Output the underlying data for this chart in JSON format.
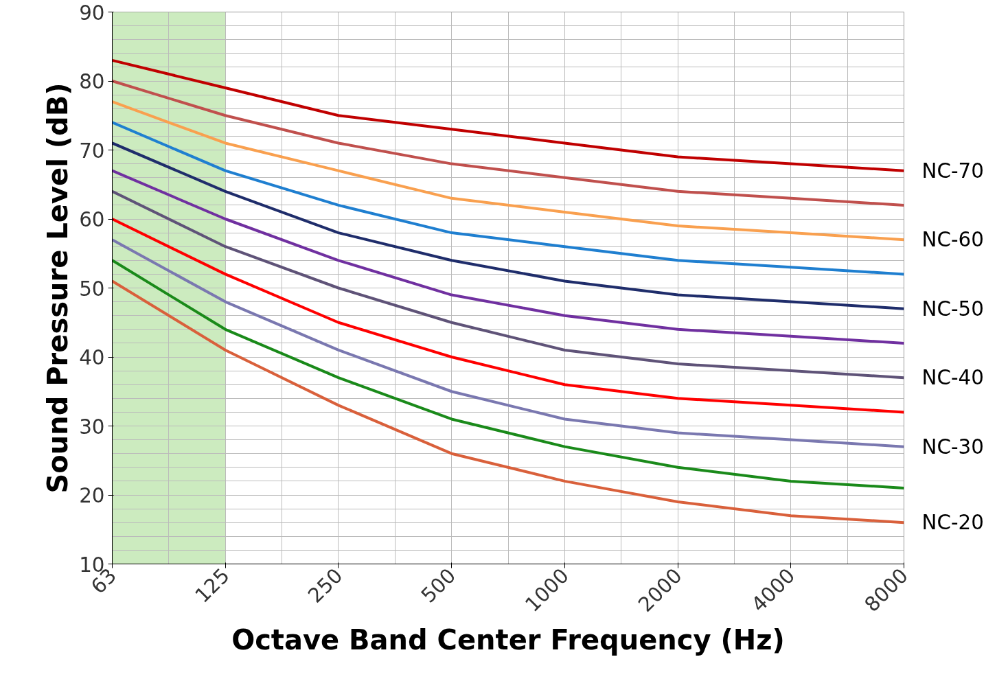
{
  "chart_data": {
    "type": "line",
    "xlabel": "Octave Band Center Frequency (Hz)",
    "ylabel": "Sound Pressure Level (dB)",
    "categories": [
      "63",
      "125",
      "250",
      "500",
      "1000",
      "2000",
      "4000",
      "8000"
    ],
    "ylim": [
      10,
      90
    ],
    "yticks": [
      10,
      20,
      30,
      40,
      50,
      60,
      70,
      80,
      90
    ],
    "grid": true,
    "bands": [
      {
        "axis": "x",
        "from": "63",
        "to": "125",
        "color": "#c6e9b8"
      }
    ],
    "series": [
      {
        "name": "NC-70",
        "color": "#c00000",
        "values": [
          83,
          79,
          75,
          73,
          71,
          69,
          68,
          67
        ]
      },
      {
        "color": "#c0504d",
        "values": [
          80,
          75,
          71,
          68,
          66,
          64,
          63,
          62
        ]
      },
      {
        "name": "NC-60",
        "color": "#f9a04f",
        "values": [
          77,
          71,
          67,
          63,
          61,
          59,
          58,
          57
        ]
      },
      {
        "color": "#1f7fd0",
        "values": [
          74,
          67,
          62,
          58,
          56,
          54,
          53,
          52
        ]
      },
      {
        "name": "NC-50",
        "color": "#1f2d6b",
        "values": [
          71,
          64,
          58,
          54,
          51,
          49,
          48,
          47
        ]
      },
      {
        "color": "#7030a0",
        "values": [
          67,
          60,
          54,
          49,
          46,
          44,
          43,
          42
        ]
      },
      {
        "name": "NC-40",
        "color": "#5f5378",
        "values": [
          64,
          56,
          50,
          45,
          41,
          39,
          38,
          37
        ]
      },
      {
        "color": "#ff0000",
        "values": [
          60,
          52,
          45,
          40,
          36,
          34,
          33,
          32
        ]
      },
      {
        "name": "NC-30",
        "color": "#7a78b0",
        "values": [
          57,
          48,
          41,
          35,
          31,
          29,
          28,
          27
        ]
      },
      {
        "color": "#1a8a1a",
        "values": [
          54,
          44,
          37,
          31,
          27,
          24,
          22,
          21
        ]
      },
      {
        "name": "NC-20",
        "color": "#d9603b",
        "values": [
          51,
          41,
          33,
          26,
          22,
          19,
          17,
          16
        ]
      }
    ]
  }
}
